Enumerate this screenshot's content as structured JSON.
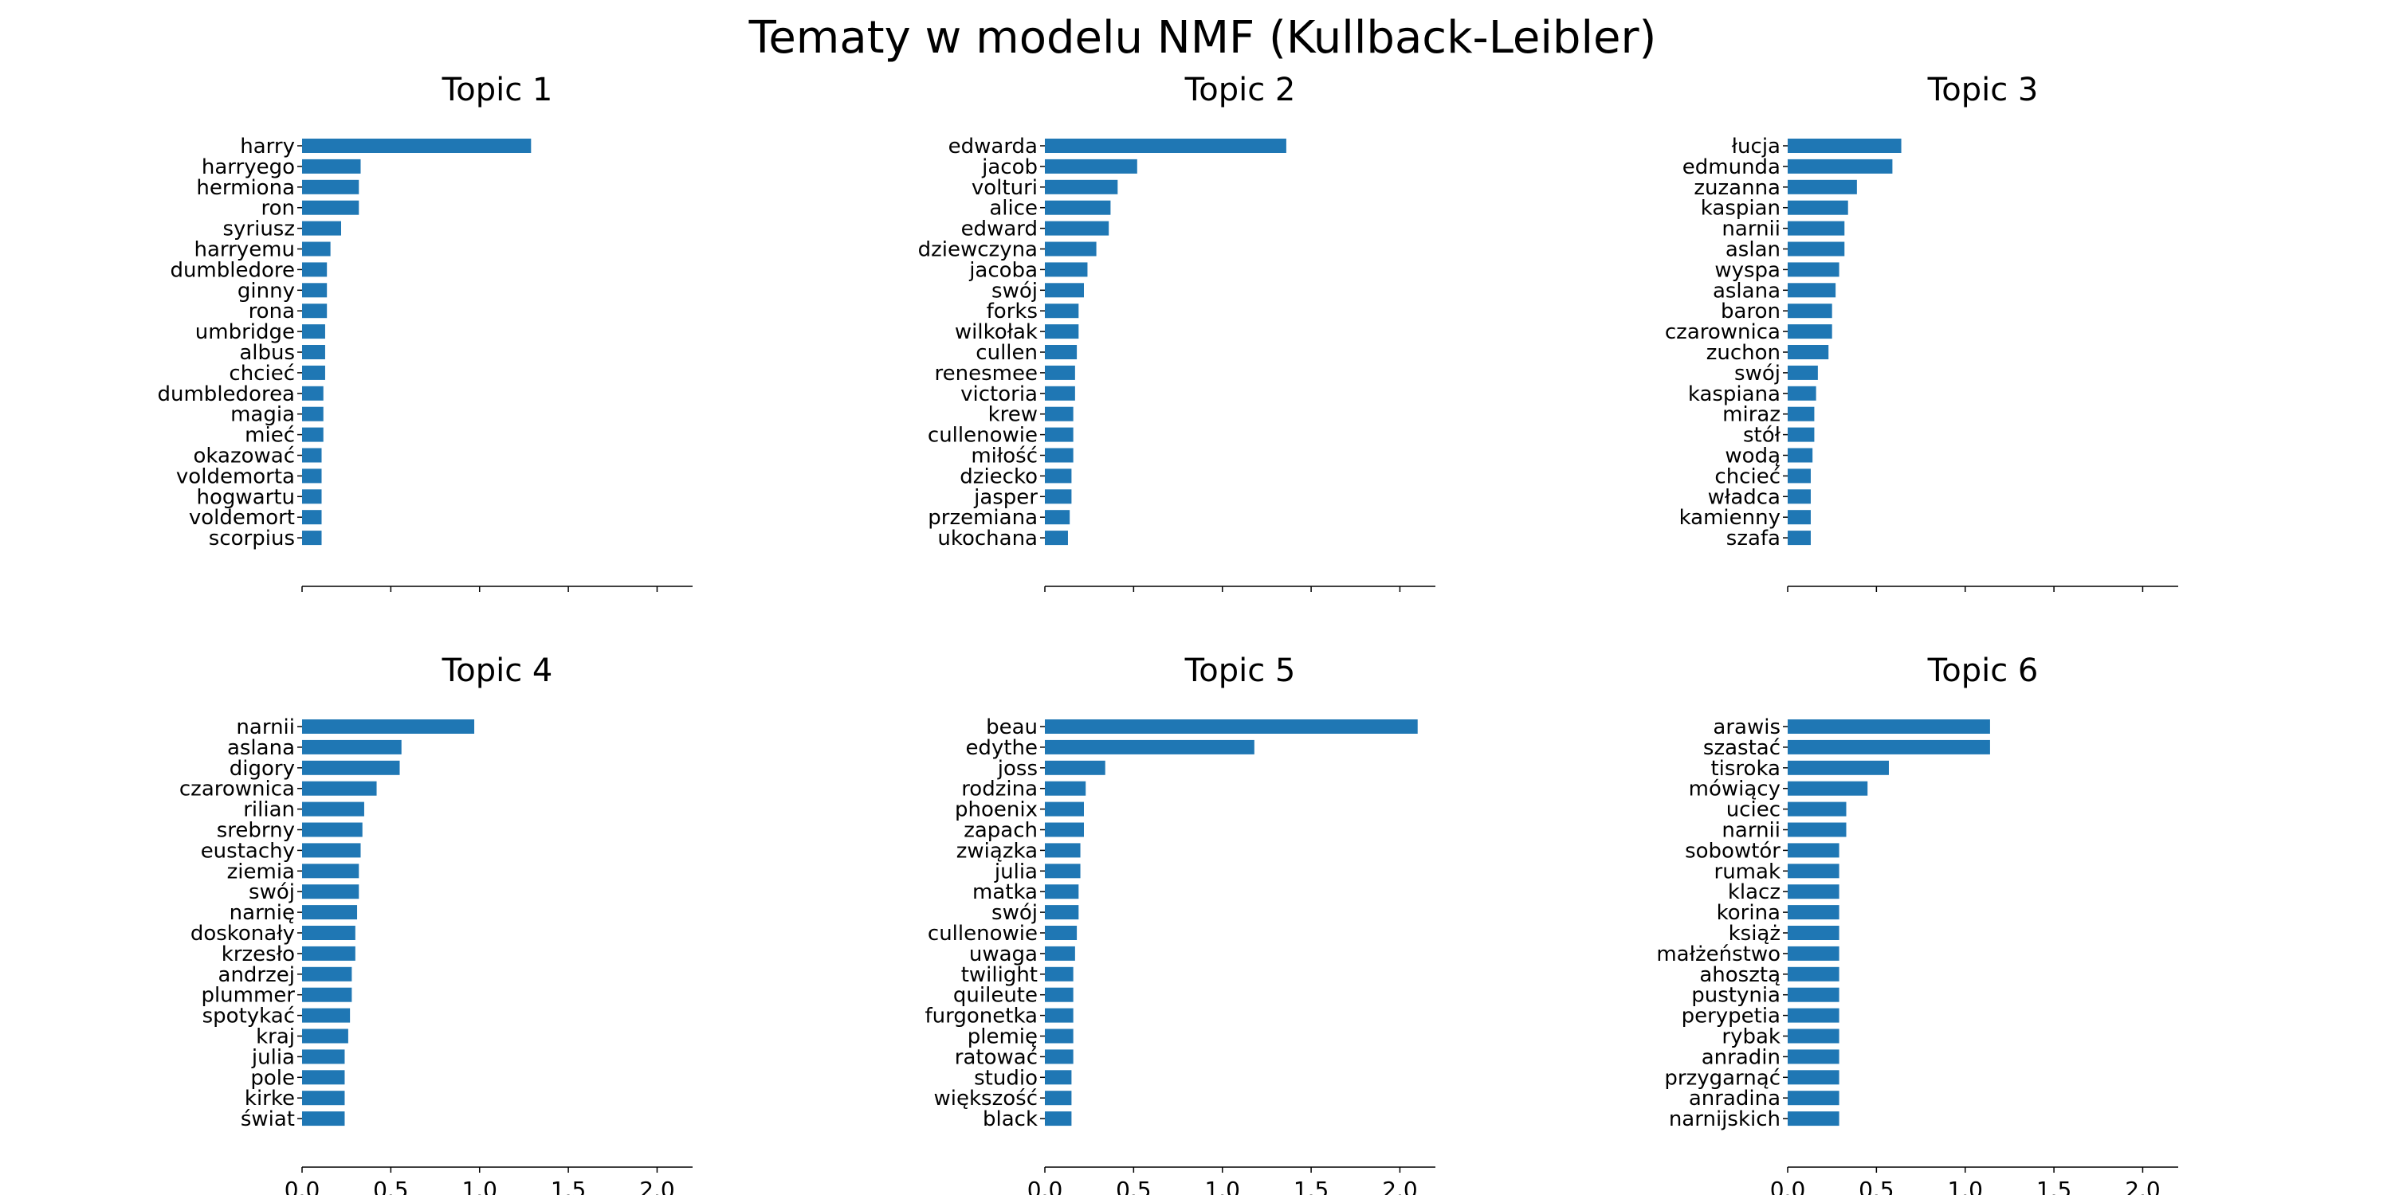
{
  "title": "Tematy w modelu NMF (Kullback-Leibler)",
  "colors": {
    "bar": "#1f77b4",
    "axis": "#000000",
    "text": "#000000"
  },
  "chart_data": [
    {
      "type": "bar",
      "orientation": "horizontal",
      "title": "Topic 1",
      "xlim": [
        0,
        2.2
      ],
      "xticks": [
        "0.0",
        "0.5",
        "1.0",
        "1.5",
        "2.0"
      ],
      "xtick_labels_visible": false,
      "categories": [
        "harry",
        "harryego",
        "hermiona",
        "ron",
        "syriusz",
        "harryemu",
        "dumbledore",
        "ginny",
        "rona",
        "umbridge",
        "albus",
        "chcieć",
        "dumbledorea",
        "magia",
        "mieć",
        "okazować",
        "voldemorta",
        "hogwartu",
        "voldemort",
        "scorpius"
      ],
      "values": [
        1.29,
        0.33,
        0.32,
        0.32,
        0.22,
        0.16,
        0.14,
        0.14,
        0.14,
        0.13,
        0.13,
        0.13,
        0.12,
        0.12,
        0.12,
        0.11,
        0.11,
        0.11,
        0.11,
        0.11
      ]
    },
    {
      "type": "bar",
      "orientation": "horizontal",
      "title": "Topic 2",
      "xlim": [
        0,
        2.2
      ],
      "xticks": [
        "0.0",
        "0.5",
        "1.0",
        "1.5",
        "2.0"
      ],
      "xtick_labels_visible": false,
      "categories": [
        "edwarda",
        "jacob",
        "volturi",
        "alice",
        "edward",
        "dziewczyna",
        "jacoba",
        "swój",
        "forks",
        "wilkołak",
        "cullen",
        "renesmee",
        "victoria",
        "krew",
        "cullenowie",
        "miłość",
        "dziecko",
        "jasper",
        "przemiana",
        "ukochana"
      ],
      "values": [
        1.36,
        0.52,
        0.41,
        0.37,
        0.36,
        0.29,
        0.24,
        0.22,
        0.19,
        0.19,
        0.18,
        0.17,
        0.17,
        0.16,
        0.16,
        0.16,
        0.15,
        0.15,
        0.14,
        0.13
      ]
    },
    {
      "type": "bar",
      "orientation": "horizontal",
      "title": "Topic 3",
      "xlim": [
        0,
        2.2
      ],
      "xticks": [
        "0.0",
        "0.5",
        "1.0",
        "1.5",
        "2.0"
      ],
      "xtick_labels_visible": false,
      "categories": [
        "łucja",
        "edmunda",
        "zuzanna",
        "kaspian",
        "narnii",
        "aslan",
        "wyspa",
        "aslana",
        "baron",
        "czarownica",
        "zuchon",
        "swój",
        "kaspiana",
        "miraz",
        "stół",
        "wodą",
        "chcieć",
        "władca",
        "kamienny",
        "szafa"
      ],
      "values": [
        0.64,
        0.59,
        0.39,
        0.34,
        0.32,
        0.32,
        0.29,
        0.27,
        0.25,
        0.25,
        0.23,
        0.17,
        0.16,
        0.15,
        0.15,
        0.14,
        0.13,
        0.13,
        0.13,
        0.13
      ]
    },
    {
      "type": "bar",
      "orientation": "horizontal",
      "title": "Topic 4",
      "xlim": [
        0,
        2.2
      ],
      "xticks": [
        "0.0",
        "0.5",
        "1.0",
        "1.5",
        "2.0"
      ],
      "xtick_labels_visible": true,
      "categories": [
        "narnii",
        "aslana",
        "digory",
        "czarownica",
        "rilian",
        "srebrny",
        "eustachy",
        "ziemia",
        "swój",
        "narnię",
        "doskonały",
        "krzesło",
        "andrzej",
        "plummer",
        "spotykać",
        "kraj",
        "julia",
        "pole",
        "kirke",
        "świat"
      ],
      "values": [
        0.97,
        0.56,
        0.55,
        0.42,
        0.35,
        0.34,
        0.33,
        0.32,
        0.32,
        0.31,
        0.3,
        0.3,
        0.28,
        0.28,
        0.27,
        0.26,
        0.24,
        0.24,
        0.24,
        0.24
      ]
    },
    {
      "type": "bar",
      "orientation": "horizontal",
      "title": "Topic 5",
      "xlim": [
        0,
        2.2
      ],
      "xticks": [
        "0.0",
        "0.5",
        "1.0",
        "1.5",
        "2.0"
      ],
      "xtick_labels_visible": true,
      "categories": [
        "beau",
        "edythe",
        "joss",
        "rodzina",
        "phoenix",
        "zapach",
        "związka",
        "julia",
        "matka",
        "swój",
        "cullenowie",
        "uwaga",
        "twilight",
        "quileute",
        "furgonetka",
        "plemię",
        "ratować",
        "studio",
        "większość",
        "black"
      ],
      "values": [
        2.1,
        1.18,
        0.34,
        0.23,
        0.22,
        0.22,
        0.2,
        0.2,
        0.19,
        0.19,
        0.18,
        0.17,
        0.16,
        0.16,
        0.16,
        0.16,
        0.16,
        0.15,
        0.15,
        0.15
      ]
    },
    {
      "type": "bar",
      "orientation": "horizontal",
      "title": "Topic 6",
      "xlim": [
        0,
        2.2
      ],
      "xticks": [
        "0.0",
        "0.5",
        "1.0",
        "1.5",
        "2.0"
      ],
      "xtick_labels_visible": true,
      "categories": [
        "arawis",
        "szastać",
        "tisroka",
        "mówiący",
        "uciec",
        "narnii",
        "sobowtór",
        "rumak",
        "klacz",
        "korina",
        "książ",
        "małżeństwo",
        "ahosztą",
        "pustynia",
        "perypetia",
        "rybak",
        "anradin",
        "przygarnąć",
        "anradina",
        "narnijskich"
      ],
      "values": [
        1.14,
        1.14,
        0.57,
        0.45,
        0.33,
        0.33,
        0.29,
        0.29,
        0.29,
        0.29,
        0.29,
        0.29,
        0.29,
        0.29,
        0.29,
        0.29,
        0.29,
        0.29,
        0.29,
        0.29
      ]
    }
  ]
}
